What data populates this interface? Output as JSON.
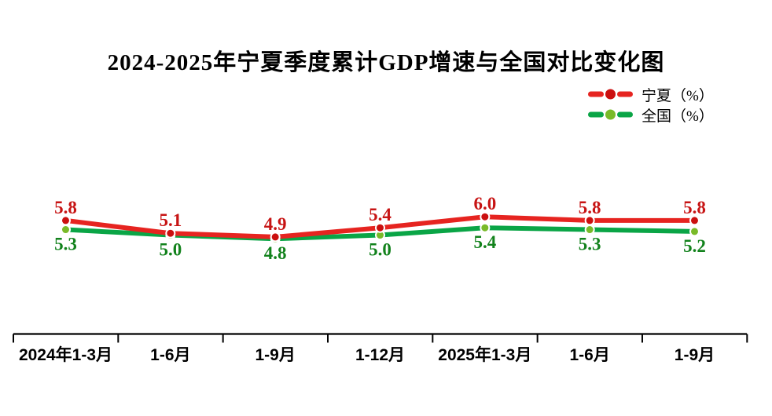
{
  "chart_data": {
    "type": "line",
    "title": "2024-2025年宁夏季度累计GDP增速与全国对比变化图",
    "categories": [
      "2024年1-3月",
      "1-6月",
      "1-9月",
      "1-12月",
      "2025年1-3月",
      "1-6月",
      "1-9月"
    ],
    "series": [
      {
        "name": "宁夏（%）",
        "values": [
          5.8,
          5.1,
          4.9,
          5.4,
          6.0,
          5.8,
          5.8
        ],
        "line_color": "#e62420",
        "marker_color": "#cb0f0f",
        "label_color": "#c71414",
        "label_position": "above"
      },
      {
        "name": "全国（%）",
        "values": [
          5.3,
          5.0,
          4.8,
          5.0,
          5.4,
          5.3,
          5.2
        ],
        "line_color": "#0aa546",
        "marker_color": "#79ba28",
        "label_color": "#12821c",
        "label_position": "below"
      }
    ],
    "xlabel": "",
    "ylabel": "",
    "y_axis": {
      "visible": false,
      "approx_range": [
        4.5,
        6.5
      ]
    },
    "grid": false,
    "legend_position": "top-right",
    "data_labels": true,
    "axis_color": "#000000"
  }
}
